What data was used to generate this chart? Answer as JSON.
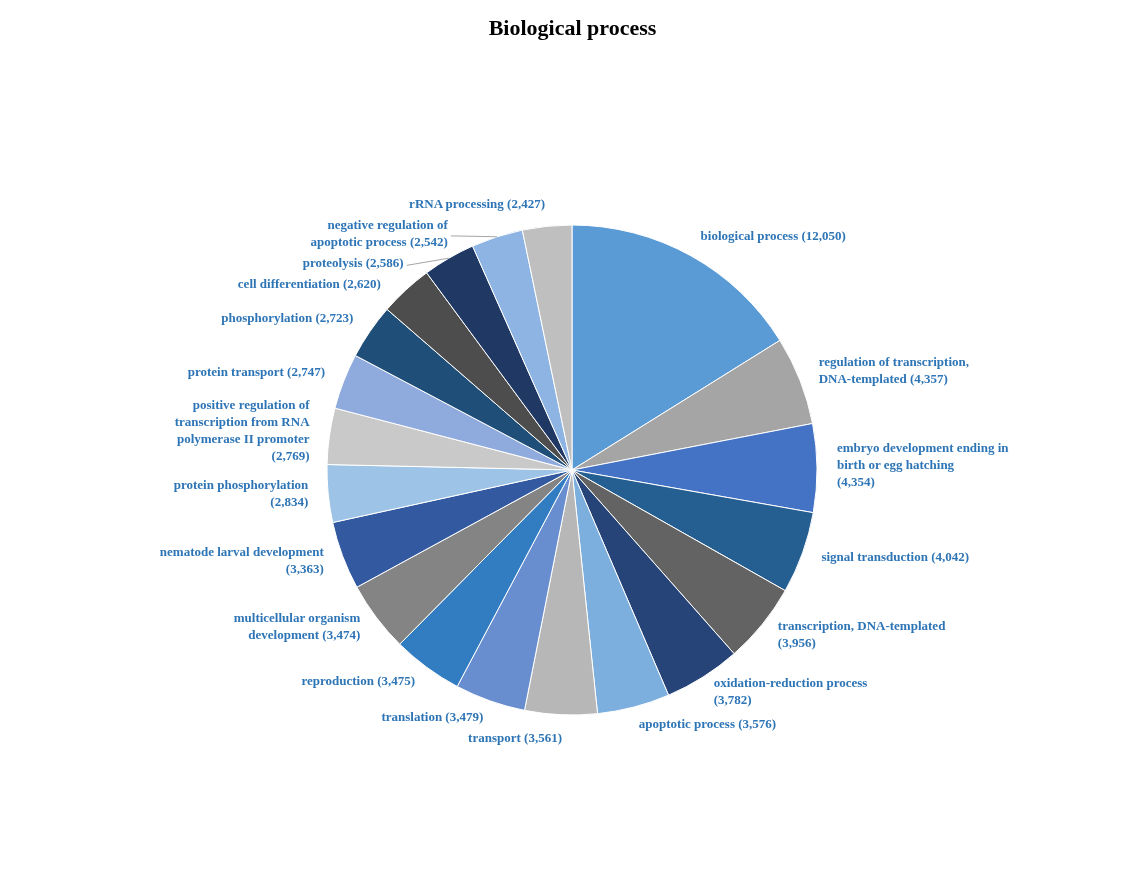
{
  "chart_data": {
    "type": "pie",
    "title": "Biological process",
    "categories": [
      "biological process",
      "regulation of transcription, DNA-templated",
      "embryo development ending in birth or egg hatching",
      "signal transduction",
      "transcription, DNA-templated",
      "oxidation-reduction process",
      "apoptotic process",
      "transport",
      "translation",
      "reproduction",
      "multicellular organism development",
      "nematode larval development",
      "protein phosphorylation",
      "positive regulation of transcription from RNA polymerase II promoter",
      "protein transport",
      "phosphorylation",
      "cell differentiation",
      "proteolysis",
      "negative regulation of apoptotic process",
      "rRNA processing"
    ],
    "values": [
      12050,
      4357,
      4354,
      4042,
      3956,
      3782,
      3576,
      3561,
      3479,
      3475,
      3474,
      3363,
      2834,
      2769,
      2747,
      2723,
      2620,
      2586,
      2542,
      2427
    ],
    "value_labels": [
      "(12,050)",
      "(4,357)",
      "(4,354)",
      "(4,042)",
      "(3,956)",
      "(3,782)",
      "(3,576)",
      "(3,561)",
      "(3,479)",
      "(3,475)",
      "(3,474)",
      "(3,363)",
      "(2,834)",
      "(2,769)",
      "(2,747)",
      "(2,723)",
      "(2,620)",
      "(2,586)",
      "(2,542)",
      "(2,427)"
    ],
    "colors": [
      "#5b9bd5",
      "#a5a5a5",
      "#4472c4",
      "#255e91",
      "#636363",
      "#264478",
      "#7cafdd",
      "#b7b7b7",
      "#698ed0",
      "#327dc2",
      "#848484",
      "#335aa1",
      "#9dc3e6",
      "#c9c9c9",
      "#8faadc",
      "#1f4e79",
      "#4d4d4d",
      "#203864",
      "#8db4e2",
      "#bfbfbf"
    ]
  }
}
